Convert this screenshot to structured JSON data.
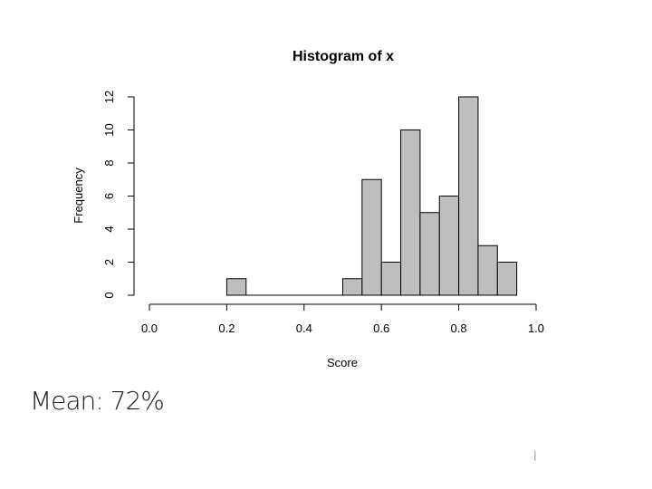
{
  "chart_data": {
    "type": "bar",
    "title": "Histogram of x",
    "xlabel": "Score",
    "ylabel": "Frequency",
    "xlim": [
      0.0,
      1.0
    ],
    "ylim": [
      0,
      12
    ],
    "bin_width": 0.05,
    "bins": [
      {
        "start": 0.2,
        "end": 0.25,
        "count": 1
      },
      {
        "start": 0.25,
        "end": 0.3,
        "count": 0
      },
      {
        "start": 0.3,
        "end": 0.35,
        "count": 0
      },
      {
        "start": 0.35,
        "end": 0.4,
        "count": 0
      },
      {
        "start": 0.4,
        "end": 0.45,
        "count": 0
      },
      {
        "start": 0.45,
        "end": 0.5,
        "count": 0
      },
      {
        "start": 0.5,
        "end": 0.55,
        "count": 1
      },
      {
        "start": 0.55,
        "end": 0.6,
        "count": 7
      },
      {
        "start": 0.6,
        "end": 0.65,
        "count": 2
      },
      {
        "start": 0.65,
        "end": 0.7,
        "count": 10
      },
      {
        "start": 0.7,
        "end": 0.75,
        "count": 5
      },
      {
        "start": 0.75,
        "end": 0.8,
        "count": 6
      },
      {
        "start": 0.8,
        "end": 0.85,
        "count": 12
      },
      {
        "start": 0.85,
        "end": 0.9,
        "count": 3
      },
      {
        "start": 0.9,
        "end": 0.95,
        "count": 2
      }
    ],
    "x_ticks": [
      "0.0",
      "0.2",
      "0.4",
      "0.6",
      "0.8",
      "1.0"
    ],
    "y_ticks": [
      "0",
      "2",
      "4",
      "6",
      "8",
      "10",
      "12"
    ],
    "grid": false,
    "bar_color": "#bebebe",
    "edge_color": "#000000"
  },
  "caption": "Mean: 72%",
  "page_mark": "|"
}
